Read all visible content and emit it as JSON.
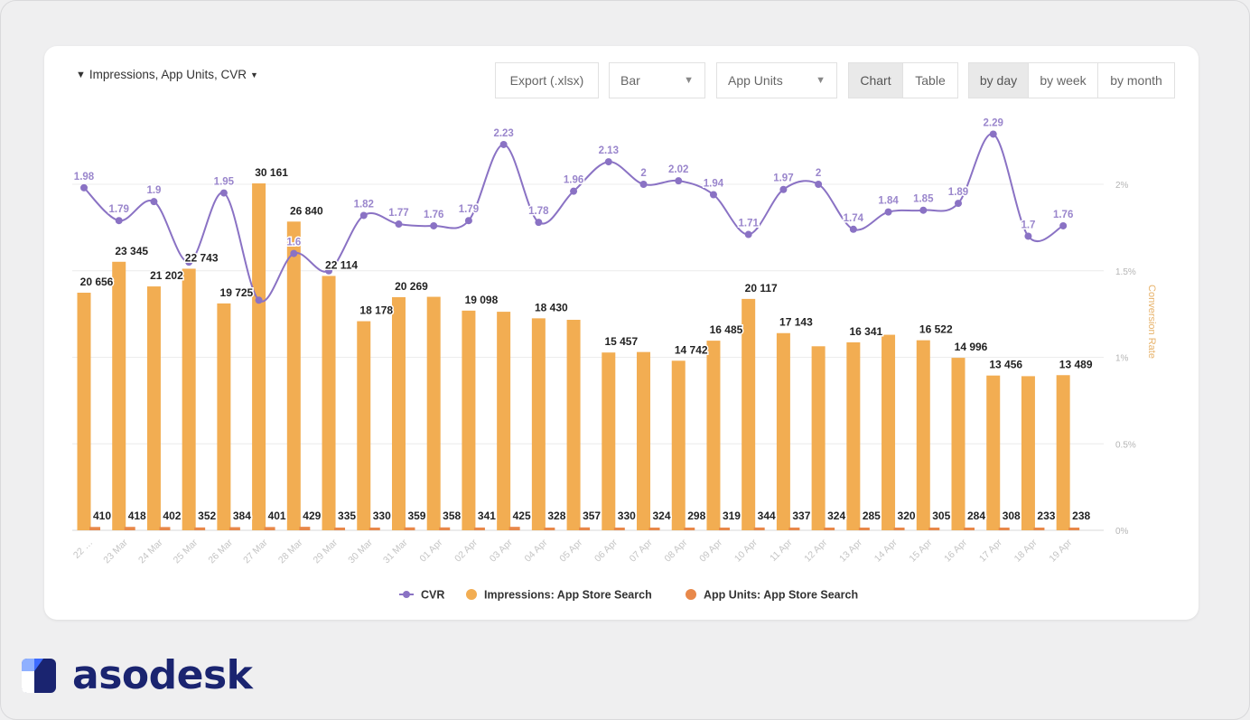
{
  "toolbar": {
    "filter_label": "Impressions, App Units, CVR",
    "export_label": "Export (.xlsx)",
    "chart_type_value": "Bar",
    "metric_value": "App Units",
    "view_chart": "Chart",
    "view_table": "Table",
    "by_day": "by day",
    "by_week": "by week",
    "by_month": "by month"
  },
  "brand": {
    "name": "asodesk",
    "color": "#1a2470",
    "accent": "#3d6bff"
  },
  "colors": {
    "cvr": "#8a72c4",
    "impressions": "#f2ad52",
    "units": "#e8884a"
  },
  "chart_data": {
    "type": "bar",
    "categories": [
      "22 …",
      "23 Mar",
      "24 Mar",
      "25 Mar",
      "26 Mar",
      "27 Mar",
      "28 Mar",
      "29 Mar",
      "30 Mar",
      "31 Mar",
      "01 Apr",
      "02 Apr",
      "03 Apr",
      "04 Apr",
      "05 Apr",
      "06 Apr",
      "07 Apr",
      "08 Apr",
      "09 Apr",
      "10 Apr",
      "11 Apr",
      "12 Apr",
      "13 Apr",
      "14 Apr",
      "15 Apr",
      "16 Apr",
      "17 Apr",
      "18 Apr",
      "19 Apr"
    ],
    "series": [
      {
        "name": "Impressions: App Store Search",
        "values": [
          20656,
          23345,
          21202,
          22743,
          19725,
          30161,
          26840,
          22114,
          18178,
          20269,
          20300,
          19098,
          19000,
          18430,
          18300,
          15457,
          15500,
          14742,
          16485,
          20117,
          17143,
          16000,
          16341,
          17000,
          16522,
          14996,
          13456,
          13400,
          13489
        ],
        "labels": [
          "20 656",
          "23 345",
          "21 202",
          "22 743",
          "19 725",
          "30 161",
          "26 840",
          "22 114",
          "18 178",
          "20 269",
          "",
          "19 098",
          "",
          "18 430",
          "",
          "15 457",
          "",
          "14 742",
          "16 485",
          "20 117",
          "17 143",
          "",
          "16 341",
          "",
          "16 522",
          "14 996",
          "13 456",
          "",
          "13 489"
        ]
      },
      {
        "name": "App Units: App Store Search",
        "values": [
          410,
          418,
          402,
          352,
          384,
          401,
          429,
          335,
          330,
          359,
          358,
          341,
          425,
          328,
          357,
          330,
          324,
          298,
          319,
          344,
          337,
          324,
          285,
          320,
          305,
          284,
          308,
          233,
          238
        ],
        "labels": [
          "410",
          "418",
          "402",
          "352",
          "384",
          "401",
          "429",
          "335",
          "330",
          "359",
          "358",
          "341",
          "425",
          "328",
          "357",
          "330",
          "324",
          "298",
          "319",
          "344",
          "337",
          "324",
          "285",
          "320",
          "305",
          "284",
          "308",
          "233",
          "238"
        ]
      },
      {
        "name": "CVR",
        "type": "line",
        "axis": "right",
        "values": [
          1.98,
          1.79,
          1.9,
          1.55,
          1.95,
          1.33,
          1.6,
          1.5,
          1.82,
          1.77,
          1.76,
          1.79,
          2.23,
          1.78,
          1.96,
          2.13,
          2.0,
          2.02,
          1.94,
          1.71,
          1.97,
          2.0,
          1.74,
          1.84,
          1.85,
          1.89,
          2.29,
          1.7,
          1.76
        ],
        "labels": [
          "1.98",
          "1.79",
          "1.9",
          "",
          "1.95",
          "",
          "1.6",
          "",
          "1.82",
          "1.77",
          "1.76",
          "1.79",
          "2.23",
          "1.78",
          "1.96",
          "2.13",
          "2",
          "2.02",
          "1.94",
          "1.71",
          "1.97",
          "2",
          "1.74",
          "1.84",
          "1.85",
          "1.89",
          "2.29",
          "1.7",
          "1.76"
        ]
      }
    ],
    "y_left_range": [
      0,
      30161
    ],
    "y_right_range": [
      0,
      2.5
    ],
    "y_right_ticks": [
      "0%",
      "0.5%",
      "1%",
      "1.5%",
      "2%"
    ],
    "y_right_tick_values": [
      0,
      0.5,
      1,
      1.5,
      2
    ],
    "y_right_label": "Conversion Rate",
    "grid": true,
    "legend_position": "bottom"
  }
}
